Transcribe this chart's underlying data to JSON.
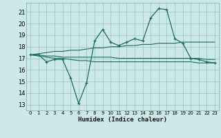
{
  "x": [
    0,
    1,
    2,
    3,
    4,
    5,
    6,
    7,
    8,
    9,
    10,
    11,
    12,
    13,
    14,
    15,
    16,
    17,
    18,
    19,
    20,
    21,
    22,
    23
  ],
  "line_main": [
    17.3,
    17.3,
    16.7,
    16.9,
    16.9,
    15.3,
    13.1,
    14.9,
    18.5,
    19.5,
    18.4,
    18.1,
    18.4,
    18.7,
    18.5,
    20.5,
    21.3,
    21.2,
    18.7,
    18.3,
    17.0,
    16.9,
    16.7,
    16.6
  ],
  "line_upper": [
    17.3,
    17.4,
    17.5,
    17.6,
    17.6,
    17.7,
    17.7,
    17.8,
    17.9,
    17.9,
    18.0,
    18.0,
    18.1,
    18.1,
    18.2,
    18.2,
    18.3,
    18.3,
    18.3,
    18.4,
    18.4,
    18.4,
    18.4,
    18.4
  ],
  "line_mid": [
    17.3,
    17.3,
    17.2,
    17.2,
    17.1,
    17.1,
    17.1,
    17.1,
    17.1,
    17.1,
    17.1,
    17.0,
    17.0,
    17.0,
    17.0,
    17.0,
    17.0,
    17.0,
    17.0,
    17.0,
    17.0,
    17.0,
    16.9,
    16.9
  ],
  "line_lower": [
    17.3,
    17.2,
    17.1,
    17.0,
    17.0,
    16.9,
    16.8,
    16.8,
    16.7,
    16.7,
    16.7,
    16.7,
    16.7,
    16.7,
    16.7,
    16.7,
    16.7,
    16.7,
    16.7,
    16.7,
    16.7,
    16.6,
    16.6,
    16.6
  ],
  "bg_color": "#cde8e8",
  "grid_color": "#9ec8c8",
  "line_color": "#1a6b5a",
  "ylabel_values": [
    13,
    14,
    15,
    16,
    17,
    18,
    19,
    20,
    21
  ],
  "xlabel": "Humidex (Indice chaleur)",
  "ylim": [
    12.5,
    21.8
  ],
  "xlim": [
    -0.5,
    23.5
  ]
}
